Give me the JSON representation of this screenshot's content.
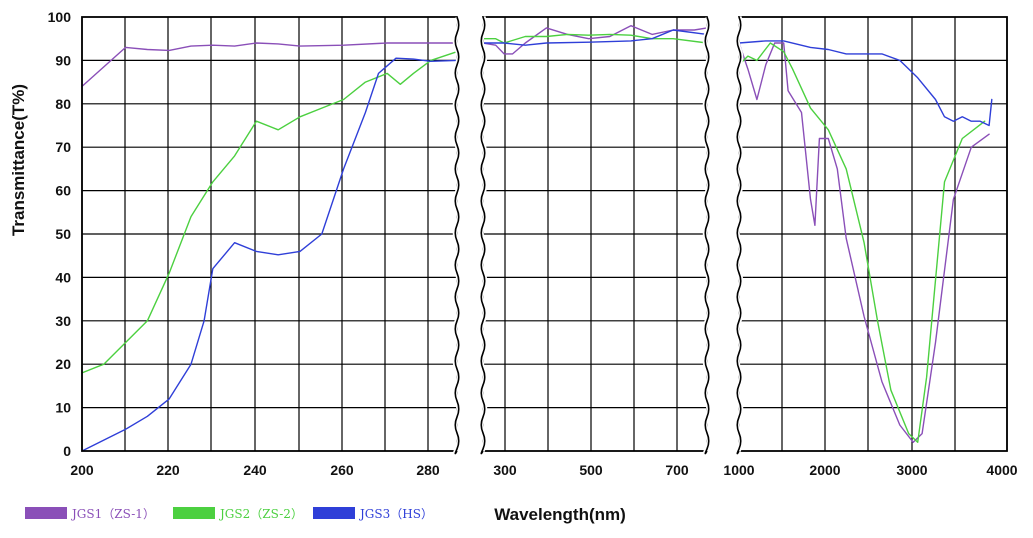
{
  "chart_data": {
    "type": "line",
    "ylabel": "Transmittance(T%)",
    "xlabel": "Wavelength(nm)",
    "ylim": [
      0,
      100
    ],
    "y_ticks": [
      "0",
      "10",
      "20",
      "30",
      "40",
      "50",
      "60",
      "70",
      "80",
      "90",
      "100"
    ],
    "grid": true,
    "legend_position": "bottom-left",
    "panels": [
      {
        "name": "uv",
        "xlim": [
          200,
          286
        ],
        "xscale": "linear",
        "x_ticks": [
          200,
          220,
          240,
          260,
          280
        ],
        "x_tick_labels": [
          "200",
          "220",
          "240",
          "260",
          "280"
        ]
      },
      {
        "name": "visible",
        "xlim": [
          250,
          780
        ],
        "xscale": "linear",
        "x_ticks": [
          300,
          500,
          700
        ],
        "x_tick_labels": [
          "300",
          "500",
          "700"
        ]
      },
      {
        "name": "infrared",
        "xlim": [
          1000,
          4000
        ],
        "xscale": "linear",
        "x_ticks": [
          1000,
          2000,
          3000,
          4000
        ],
        "x_tick_labels": [
          "1000",
          "2000",
          "3000",
          "4000"
        ]
      }
    ],
    "series": [
      {
        "name": "JGS1（ZS-1）",
        "color": "#8a4fb8",
        "panels": {
          "uv": [
            [
              200,
              84
            ],
            [
              210,
              93
            ],
            [
              215,
              92.5
            ],
            [
              220,
              92.3
            ],
            [
              225,
              93.3
            ],
            [
              230,
              93.5
            ],
            [
              235,
              93.3
            ],
            [
              240,
              94
            ],
            [
              245,
              93.8
            ],
            [
              250,
              93.3
            ],
            [
              260,
              93.5
            ],
            [
              270,
              94
            ],
            [
              280,
              94
            ],
            [
              286,
              94
            ]
          ],
          "visible": [
            [
              250,
              94
            ],
            [
              280,
              93.5
            ],
            [
              300,
              91.5
            ],
            [
              320,
              91.5
            ],
            [
              350,
              94
            ],
            [
              400,
              97.5
            ],
            [
              450,
              96
            ],
            [
              500,
              95
            ],
            [
              550,
              95.5
            ],
            [
              600,
              98
            ],
            [
              650,
              96
            ],
            [
              700,
              97
            ],
            [
              750,
              97
            ],
            [
              780,
              97.5
            ]
          ],
          "infrared": [
            [
              1000,
              94
            ],
            [
              1100,
              88
            ],
            [
              1200,
              81
            ],
            [
              1300,
              89
            ],
            [
              1400,
              94
            ],
            [
              1500,
              94
            ],
            [
              1550,
              83
            ],
            [
              1700,
              78
            ],
            [
              1800,
              58
            ],
            [
              1850,
              52
            ],
            [
              1900,
              72
            ],
            [
              2000,
              72
            ],
            [
              2100,
              65
            ],
            [
              2200,
              49
            ],
            [
              2400,
              31
            ],
            [
              2600,
              16
            ],
            [
              2800,
              6
            ],
            [
              2950,
              2
            ],
            [
              3050,
              4
            ],
            [
              3200,
              25
            ],
            [
              3400,
              58
            ],
            [
              3600,
              70
            ],
            [
              3800,
              73
            ]
          ]
        }
      },
      {
        "name": "JGS2（ZS-2）",
        "color": "#4cd040",
        "panels": {
          "uv": [
            [
              200,
              18
            ],
            [
              205,
              20
            ],
            [
              210,
              25
            ],
            [
              215,
              30
            ],
            [
              220,
              41
            ],
            [
              225,
              54
            ],
            [
              230,
              62
            ],
            [
              235,
              68
            ],
            [
              240,
              76
            ],
            [
              245,
              74
            ],
            [
              250,
              77
            ],
            [
              255,
              79
            ],
            [
              260,
              81
            ],
            [
              265,
              85
            ],
            [
              270,
              87
            ],
            [
              273,
              84.5
            ],
            [
              276,
              87
            ],
            [
              280,
              90
            ],
            [
              286,
              92
            ]
          ],
          "visible": [
            [
              250,
              95
            ],
            [
              280,
              95
            ],
            [
              300,
              94
            ],
            [
              350,
              95.5
            ],
            [
              400,
              95.5
            ],
            [
              450,
              96
            ],
            [
              500,
              95.8
            ],
            [
              550,
              96
            ],
            [
              600,
              95.8
            ],
            [
              650,
              95
            ],
            [
              700,
              95
            ],
            [
              780,
              94
            ]
          ],
          "infrared": [
            [
              1000,
              89
            ],
            [
              1100,
              91
            ],
            [
              1200,
              90
            ],
            [
              1350,
              94
            ],
            [
              1500,
              92
            ],
            [
              1600,
              88
            ],
            [
              1800,
              79
            ],
            [
              2000,
              74
            ],
            [
              2200,
              65
            ],
            [
              2400,
              48
            ],
            [
              2550,
              30
            ],
            [
              2700,
              14
            ],
            [
              2900,
              4
            ],
            [
              3000,
              2
            ],
            [
              3100,
              17
            ],
            [
              3300,
              62
            ],
            [
              3500,
              72
            ],
            [
              3750,
              76
            ]
          ]
        }
      },
      {
        "name": "JGS3（HS）",
        "color": "#2f3fd8",
        "panels": {
          "uv": [
            [
              200,
              0
            ],
            [
              205,
              2.5
            ],
            [
              210,
              5
            ],
            [
              215,
              8
            ],
            [
              220,
              12
            ],
            [
              225,
              20
            ],
            [
              228,
              30
            ],
            [
              230,
              42
            ],
            [
              235,
              48
            ],
            [
              240,
              46
            ],
            [
              245,
              45.2
            ],
            [
              250,
              46
            ],
            [
              255,
              50
            ],
            [
              260,
              65
            ],
            [
              265,
              78
            ],
            [
              268,
              87
            ],
            [
              272,
              90.5
            ],
            [
              276,
              90.3
            ],
            [
              280,
              89.8
            ],
            [
              286,
              90
            ]
          ],
          "visible": [
            [
              250,
              94
            ],
            [
              300,
              94
            ],
            [
              350,
              93.5
            ],
            [
              400,
              94
            ],
            [
              500,
              94.2
            ],
            [
              600,
              94.5
            ],
            [
              650,
              95
            ],
            [
              700,
              97
            ],
            [
              780,
              96
            ]
          ],
          "infrared": [
            [
              1000,
              94
            ],
            [
              1300,
              94.5
            ],
            [
              1500,
              94.5
            ],
            [
              1800,
              93
            ],
            [
              2000,
              92.5
            ],
            [
              2200,
              91.5
            ],
            [
              2600,
              91.5
            ],
            [
              2800,
              90
            ],
            [
              3000,
              86
            ],
            [
              3200,
              81
            ],
            [
              3300,
              77
            ],
            [
              3400,
              76
            ],
            [
              3500,
              77
            ],
            [
              3600,
              76
            ],
            [
              3700,
              76
            ],
            [
              3800,
              75
            ],
            [
              3830,
              81
            ]
          ]
        }
      }
    ]
  }
}
